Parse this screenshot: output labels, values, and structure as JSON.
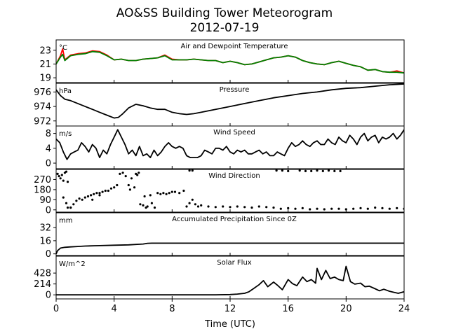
{
  "figure": {
    "title_line1": "AO&SS Building Tower Meteorogram",
    "title_line2": "2012-07-19",
    "xlabel": "Time (UTC)"
  },
  "chart_data": [
    {
      "type": "line",
      "title": "Air and Dewpoint Temperature",
      "unit": "°C",
      "xlim": [
        0,
        24
      ],
      "ylim": [
        18.3,
        24.5
      ],
      "yticks": [
        19,
        21,
        23
      ],
      "colors": [
        "#ff0000",
        "#008000"
      ],
      "series": [
        {
          "x": [
            0,
            0.3,
            0.45,
            0.6,
            1,
            1.5,
            2,
            2.5,
            3,
            3.5,
            4,
            4.5,
            5,
            5.5,
            6,
            6.5,
            7,
            7.5,
            8,
            8.5,
            9,
            9.5,
            10,
            10.5,
            11,
            11.5,
            12,
            12.5,
            13,
            13.5,
            14,
            14.5,
            15,
            15.5,
            16,
            16.5,
            17,
            17.5,
            18,
            18.5,
            19,
            19.5,
            20,
            20.5,
            21,
            21.5,
            22,
            22.5,
            23,
            23.5,
            24
          ],
          "y": [
            21.0,
            22.2,
            23.2,
            21.6,
            22.3,
            22.5,
            22.6,
            22.9,
            22.8,
            22.3,
            21.6,
            21.7,
            21.5,
            21.5,
            21.7,
            21.8,
            21.9,
            22.3,
            21.7,
            21.6,
            21.6,
            21.7,
            21.6,
            21.5,
            21.5,
            21.2,
            21.4,
            21.2,
            20.9,
            21.0,
            21.3,
            21.6,
            21.9,
            22.0,
            22.2,
            22.0,
            21.5,
            21.2,
            21.0,
            20.9,
            21.2,
            21.4,
            21.1,
            20.8,
            20.6,
            20.1,
            20.2,
            19.9,
            19.8,
            20.0,
            19.7
          ]
        },
        {
          "x": [
            0,
            0.3,
            0.45,
            0.6,
            1,
            1.5,
            2,
            2.5,
            3,
            3.5,
            4,
            4.5,
            5,
            5.5,
            6,
            6.5,
            7,
            7.5,
            8,
            8.5,
            9,
            9.5,
            10,
            10.5,
            11,
            11.5,
            12,
            12.5,
            13,
            13.5,
            14,
            14.5,
            15,
            15.5,
            16,
            16.5,
            17,
            17.5,
            18,
            18.5,
            19,
            19.5,
            20,
            20.5,
            21,
            21.5,
            22,
            22.5,
            23,
            23.5,
            24
          ],
          "y": [
            21.0,
            22.0,
            22.4,
            21.5,
            22.2,
            22.4,
            22.5,
            22.8,
            22.7,
            22.2,
            21.6,
            21.7,
            21.5,
            21.5,
            21.7,
            21.8,
            21.9,
            22.2,
            21.6,
            21.6,
            21.6,
            21.7,
            21.6,
            21.5,
            21.5,
            21.2,
            21.4,
            21.2,
            20.9,
            21.0,
            21.3,
            21.6,
            21.9,
            22.0,
            22.2,
            22.0,
            21.5,
            21.2,
            21.0,
            20.9,
            21.2,
            21.4,
            21.1,
            20.8,
            20.6,
            20.1,
            20.2,
            19.9,
            19.8,
            19.8,
            19.7
          ]
        }
      ]
    },
    {
      "type": "line",
      "title": "Pressure",
      "unit": "hPa",
      "xlim": [
        0,
        24
      ],
      "ylim": [
        971.3,
        977.2
      ],
      "yticks": [
        972,
        974,
        976
      ],
      "colors": [
        "#000000"
      ],
      "series": [
        {
          "x": [
            0,
            0.3,
            0.6,
            1,
            1.5,
            2,
            2.5,
            3,
            3.5,
            4,
            4.3,
            4.6,
            5,
            5.5,
            6,
            6.5,
            7,
            7.5,
            8,
            8.5,
            9,
            9.5,
            10,
            11,
            12,
            13,
            14,
            15,
            16,
            17,
            18,
            19,
            20,
            21,
            22,
            23,
            24
          ],
          "y": [
            976.3,
            975.5,
            975.0,
            974.8,
            974.4,
            974.0,
            973.6,
            973.2,
            972.8,
            972.4,
            972.5,
            973.0,
            973.8,
            974.3,
            974.1,
            973.8,
            973.6,
            973.6,
            973.2,
            973.0,
            972.9,
            973.0,
            973.2,
            973.6,
            974.0,
            974.4,
            974.8,
            975.2,
            975.5,
            975.8,
            976.0,
            976.3,
            976.5,
            976.6,
            976.8,
            977.0,
            977.1
          ]
        }
      ]
    },
    {
      "type": "line",
      "title": "Wind Speed",
      "unit": "m/s",
      "xlim": [
        0,
        24
      ],
      "ylim": [
        -1.5,
        10
      ],
      "yticks": [
        0,
        4,
        8
      ],
      "colors": [
        "#000000"
      ],
      "series": [
        {
          "x": [
            0,
            0.25,
            0.5,
            0.75,
            1,
            1.25,
            1.5,
            1.75,
            2,
            2.25,
            2.5,
            2.75,
            3,
            3.25,
            3.5,
            3.75,
            4,
            4.25,
            4.5,
            4.75,
            5,
            5.25,
            5.5,
            5.75,
            6,
            6.25,
            6.5,
            6.75,
            7,
            7.25,
            7.5,
            7.75,
            8,
            8.25,
            8.5,
            8.75,
            9,
            9.25,
            9.5,
            9.75,
            10,
            10.25,
            10.5,
            10.75,
            11,
            11.25,
            11.5,
            11.75,
            12,
            12.25,
            12.5,
            12.75,
            13,
            13.25,
            13.5,
            13.75,
            14,
            14.25,
            14.5,
            14.75,
            15,
            15.25,
            15.5,
            15.75,
            16,
            16.25,
            16.5,
            16.75,
            17,
            17.25,
            17.5,
            17.75,
            18,
            18.25,
            18.5,
            18.75,
            19,
            19.25,
            19.5,
            19.75,
            20,
            20.25,
            20.5,
            20.75,
            21,
            21.25,
            21.5,
            21.75,
            22,
            22.25,
            22.5,
            22.75,
            23,
            23.25,
            23.5,
            23.75,
            24
          ],
          "y": [
            6.5,
            5.5,
            3.0,
            1.0,
            2.5,
            3.0,
            3.5,
            5.5,
            4.5,
            3.0,
            5.0,
            4.0,
            1.5,
            3.5,
            2.5,
            5.0,
            7.0,
            9.0,
            7.0,
            5.0,
            2.5,
            3.5,
            2.0,
            4.5,
            2.0,
            2.5,
            1.5,
            3.5,
            2.0,
            3.0,
            4.5,
            5.5,
            4.5,
            4.0,
            4.5,
            4.0,
            2.0,
            1.5,
            1.5,
            1.5,
            2.0,
            3.5,
            3.0,
            2.5,
            4.0,
            4.0,
            3.5,
            4.5,
            3.0,
            2.5,
            3.5,
            3.0,
            3.5,
            2.5,
            2.5,
            3.0,
            3.5,
            2.5,
            3.0,
            2.0,
            2.0,
            3.0,
            2.5,
            2.0,
            4.0,
            5.5,
            4.5,
            5.0,
            6.0,
            5.0,
            4.5,
            5.5,
            6.0,
            5.0,
            5.0,
            6.5,
            5.5,
            5.0,
            7.0,
            6.0,
            5.5,
            7.5,
            6.5,
            5.0,
            7.0,
            8.0,
            6.0,
            7.0,
            7.5,
            5.5,
            7.0,
            6.5,
            7.0,
            8.0,
            6.5,
            7.5,
            9.0
          ]
        }
      ]
    },
    {
      "type": "scatter",
      "title": "Wind Direction",
      "unit": "",
      "xlim": [
        0,
        24
      ],
      "ylim": [
        -20,
        360
      ],
      "yticks": [
        0,
        90,
        180,
        270
      ],
      "colors": [
        "#000000"
      ],
      "series": [
        {
          "x": [
            0.1,
            0.2,
            0.3,
            0.4,
            0.5,
            0.6,
            0.7,
            0.8,
            1.0,
            1.2,
            1.4,
            1.6,
            1.8,
            2.0,
            2.2,
            2.4,
            2.6,
            2.8,
            3.0,
            3.2,
            3.4,
            3.6,
            3.8,
            4.0,
            4.2,
            4.4,
            4.6,
            4.8,
            5.0,
            5.1,
            5.2,
            5.4,
            5.5,
            5.6,
            5.7,
            5.8,
            6.0,
            6.1,
            6.2,
            6.3,
            6.5,
            6.6,
            6.8,
            7.0,
            7.2,
            7.4,
            7.6,
            7.8,
            8.0,
            8.2,
            8.5,
            8.8,
            9.0,
            9.2,
            9.4,
            9.6,
            9.8,
            10.0,
            10.5,
            11,
            11.5,
            12,
            12.5,
            13,
            13.5,
            14,
            14.5,
            15,
            15.5,
            16,
            16.5,
            17,
            17.5,
            18,
            18.5,
            19,
            19.5,
            20,
            20.5,
            21,
            21.5,
            22,
            22.5,
            23,
            23.5,
            24,
            15.2,
            15.6,
            16.0,
            16.8,
            17.2,
            17.6,
            18.0,
            18.4,
            18.8,
            19.2,
            19.6,
            9.2,
            9.4,
            0.5,
            0.7,
            1.0,
            2.5,
            3.0,
            0.8
          ],
          "y": [
            320,
            300,
            280,
            310,
            260,
            330,
            340,
            250,
            20,
            50,
            80,
            100,
            90,
            110,
            120,
            130,
            140,
            150,
            150,
            160,
            170,
            170,
            190,
            200,
            220,
            320,
            330,
            300,
            220,
            180,
            280,
            200,
            320,
            310,
            330,
            50,
            40,
            120,
            20,
            30,
            130,
            60,
            20,
            150,
            140,
            150,
            140,
            150,
            160,
            160,
            150,
            170,
            30,
            60,
            90,
            50,
            30,
            40,
            30,
            25,
            30,
            25,
            30,
            25,
            20,
            30,
            25,
            20,
            10,
            15,
            10,
            15,
            5,
            10,
            5,
            10,
            10,
            5,
            10,
            15,
            10,
            20,
            15,
            10,
            15,
            10,
            350,
            350,
            345,
            350,
            345,
            345,
            350,
            345,
            350,
            345,
            345,
            350,
            350,
            110,
            60,
            20,
            90,
            130,
            20
          ]
        }
      ]
    },
    {
      "type": "line",
      "title": "Accumulated Precipitation Since 0Z",
      "unit": "mm",
      "xlim": [
        0,
        24
      ],
      "ylim": [
        -2,
        50
      ],
      "yticks": [
        0,
        16,
        32
      ],
      "colors": [
        "#000000"
      ],
      "series": [
        {
          "x": [
            0,
            0.1,
            0.3,
            0.6,
            1,
            1.5,
            2,
            3,
            4,
            5,
            5.5,
            6,
            6.3,
            6.6,
            7,
            8,
            9,
            10,
            12,
            14,
            16,
            18,
            20,
            22,
            24
          ],
          "y": [
            0,
            4,
            7,
            8,
            8.5,
            9,
            9.5,
            10,
            10.5,
            11,
            11.5,
            12,
            12.8,
            13,
            13,
            13,
            13,
            13,
            13,
            13,
            13,
            13,
            13,
            13,
            13
          ]
        }
      ]
    },
    {
      "type": "line",
      "title": "Solar Flux",
      "unit": "W/m^2",
      "xlim": [
        0,
        24
      ],
      "ylim": [
        -80,
        760
      ],
      "yticks": [
        0,
        214,
        428
      ],
      "colors": [
        "#000000"
      ],
      "series": [
        {
          "x": [
            0,
            2,
            4,
            6,
            8,
            9,
            10,
            11,
            12,
            12.5,
            13,
            13.3,
            13.6,
            14,
            14.3,
            14.6,
            15,
            15.3,
            15.6,
            16,
            16.3,
            16.6,
            17,
            17.3,
            17.6,
            17.9,
            18,
            18.3,
            18.6,
            18.9,
            19.2,
            19.5,
            19.8,
            20,
            20.3,
            20.6,
            21,
            21.3,
            21.6,
            22,
            22.3,
            22.6,
            23,
            23.3,
            23.6,
            24
          ],
          "y": [
            0,
            0,
            0,
            0,
            0,
            0,
            0,
            0,
            5,
            15,
            30,
            60,
            120,
            200,
            280,
            160,
            250,
            180,
            100,
            300,
            220,
            180,
            350,
            260,
            300,
            230,
            520,
            300,
            480,
            320,
            350,
            300,
            280,
            560,
            260,
            210,
            230,
            160,
            170,
            120,
            80,
            110,
            70,
            50,
            30,
            60
          ]
        }
      ]
    }
  ]
}
